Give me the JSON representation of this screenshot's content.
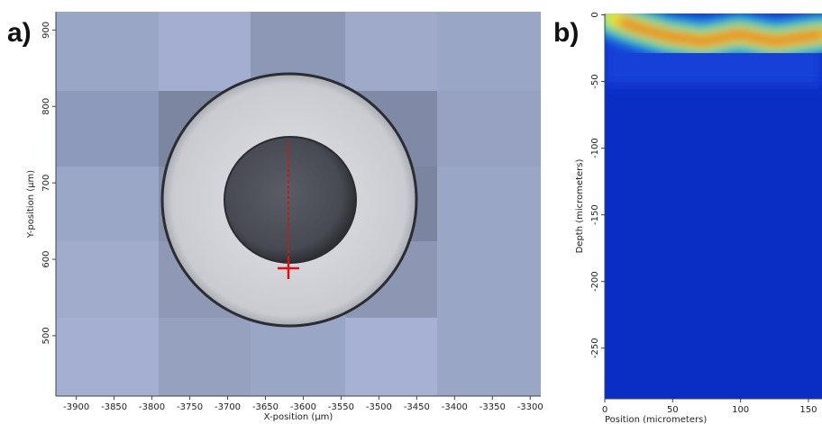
{
  "chart_data": [
    {
      "type": "image",
      "panel_label": "a)",
      "x_label": "X-position (µm)",
      "y_label": "Y-position (µm)",
      "xlim": [
        -3927,
        -3286
      ],
      "ylim": [
        421,
        924
      ],
      "xticks": [
        -3900,
        -3850,
        -3800,
        -3750,
        -3700,
        -3650,
        -3600,
        -3550,
        -3500,
        -3450,
        -3400,
        -3350,
        -3300
      ],
      "yticks": [
        500,
        600,
        700,
        800,
        900
      ]
    },
    {
      "type": "heatmap",
      "panel_label": "b)",
      "x_label": "Position (micrometers)",
      "y_label": "Depth (micrometers)",
      "xlim": [
        0,
        160
      ],
      "ylim": [
        -288,
        1
      ],
      "xticks": [
        0,
        50,
        100,
        150
      ],
      "yticks": [
        0,
        -50,
        -100,
        -150,
        -200,
        -250
      ]
    }
  ]
}
